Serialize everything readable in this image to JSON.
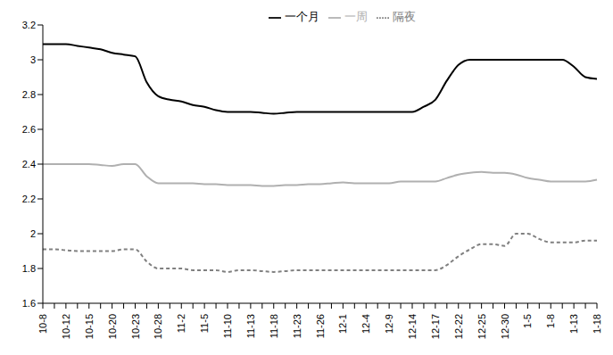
{
  "chart_data": {
    "type": "line",
    "legend": "top",
    "grid": false,
    "categories": [
      "10-8",
      null,
      "10-12",
      null,
      "10-15",
      null,
      "10-20",
      null,
      "10-23",
      null,
      "10-28",
      null,
      "11-2",
      null,
      "11-5",
      null,
      "11-10",
      null,
      "11-13",
      null,
      "11-18",
      null,
      "11-23",
      null,
      "11-26",
      null,
      "12-1",
      null,
      "12-4",
      null,
      "12-9",
      null,
      "12-14",
      null,
      "12-17",
      null,
      "12-22",
      null,
      "12-25",
      null,
      "12-30",
      null,
      "1-5",
      null,
      "1-8",
      null,
      "1-13",
      null,
      "1-18"
    ],
    "ylim": [
      1.6,
      3.2
    ],
    "yticks": [
      1.6,
      1.8,
      2,
      2.2,
      2.4,
      2.6,
      2.8,
      3,
      3.2
    ],
    "series": [
      {
        "name": "隔夜",
        "color": "#808080",
        "line_style": "dashed",
        "marker": "none",
        "values": [
          1.91,
          1.91,
          1.905,
          1.9,
          1.9,
          1.9,
          1.9,
          1.91,
          1.91,
          1.84,
          1.8,
          1.8,
          1.8,
          1.79,
          1.79,
          1.79,
          1.78,
          1.79,
          1.79,
          1.785,
          1.78,
          1.785,
          1.79,
          1.79,
          1.79,
          1.79,
          1.79,
          1.79,
          1.79,
          1.79,
          1.79,
          1.79,
          1.79,
          1.79,
          1.79,
          1.82,
          1.87,
          1.91,
          1.94,
          1.94,
          1.93,
          2.0,
          2.0,
          1.97,
          1.95,
          1.95,
          1.95,
          1.96,
          1.96
        ]
      },
      {
        "name": "一周",
        "color": "#b0b0b0",
        "line_style": "solid",
        "marker": "none",
        "values": [
          2.4,
          2.4,
          2.4,
          2.4,
          2.4,
          2.395,
          2.39,
          2.4,
          2.4,
          2.33,
          2.29,
          2.29,
          2.29,
          2.29,
          2.285,
          2.285,
          2.28,
          2.28,
          2.28,
          2.275,
          2.275,
          2.28,
          2.28,
          2.285,
          2.285,
          2.29,
          2.295,
          2.29,
          2.29,
          2.29,
          2.29,
          2.3,
          2.3,
          2.3,
          2.3,
          2.32,
          2.34,
          2.35,
          2.355,
          2.35,
          2.35,
          2.34,
          2.32,
          2.31,
          2.3,
          2.3,
          2.3,
          2.3,
          2.31
        ]
      },
      {
        "name": "一个月",
        "color": "#000000",
        "line_style": "solid",
        "marker": "none",
        "values": [
          3.09,
          3.09,
          3.09,
          3.08,
          3.07,
          3.06,
          3.04,
          3.03,
          3.02,
          2.87,
          2.79,
          2.77,
          2.76,
          2.74,
          2.73,
          2.71,
          2.7,
          2.7,
          2.7,
          2.695,
          2.69,
          2.695,
          2.7,
          2.7,
          2.7,
          2.7,
          2.7,
          2.7,
          2.7,
          2.7,
          2.7,
          2.7,
          2.7,
          2.73,
          2.77,
          2.88,
          2.97,
          3.0,
          3.0,
          3.0,
          3.0,
          3.0,
          3.0,
          3.0,
          3.0,
          3.0,
          2.96,
          2.9,
          2.89
        ]
      }
    ]
  }
}
